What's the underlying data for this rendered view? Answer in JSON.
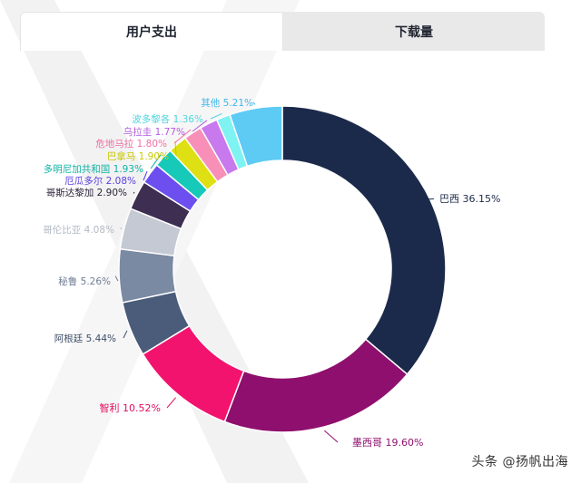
{
  "tabs": [
    {
      "label": "用户支出",
      "active": true
    },
    {
      "label": "下载量",
      "active": false
    }
  ],
  "watermark": "头条 @扬帆出海",
  "chart_data": {
    "type": "pie",
    "donut": true,
    "series": [
      {
        "name": "巴西",
        "value": 36.15,
        "label": "巴西 36.15%",
        "color": "#1b2a4a",
        "label_color": "#1b2a4a"
      },
      {
        "name": "墨西哥",
        "value": 19.6,
        "label": "墨西哥 19.60%",
        "color": "#8f0f6e",
        "label_color": "#8f0f6e"
      },
      {
        "name": "智利",
        "value": 10.52,
        "label": "智利 10.52%",
        "color": "#f2136e",
        "label_color": "#e0105f"
      },
      {
        "name": "阿根廷",
        "value": 5.44,
        "label": "阿根廷 5.44%",
        "color": "#4a5c7a",
        "label_color": "#3e4d66"
      },
      {
        "name": "秘鲁",
        "value": 5.26,
        "label": "秘鲁 5.26%",
        "color": "#7b8aa3",
        "label_color": "#6f7d95"
      },
      {
        "name": "哥伦比亚",
        "value": 4.08,
        "label": "哥伦比亚 4.08%",
        "color": "#c4c9d3",
        "label_color": "#b4b9c4"
      },
      {
        "name": "哥斯达黎加",
        "value": 2.9,
        "label": "哥斯达黎加 2.90%",
        "color": "#3d2e52",
        "label_color": "#2b2238"
      },
      {
        "name": "厄瓜多尔",
        "value": 2.08,
        "label": "厄瓜多尔 2.08%",
        "color": "#6c4fee",
        "label_color": "#5b3fe0"
      },
      {
        "name": "多明尼加共和国",
        "value": 1.93,
        "label": "多明尼加共和国 1.93%",
        "color": "#16c9b8",
        "label_color": "#10b3a4"
      },
      {
        "name": "巴拿马",
        "value": 1.9,
        "label": "巴拿马 1.90%",
        "color": "#dfe013",
        "label_color": "#c8c900"
      },
      {
        "name": "危地马拉",
        "value": 1.8,
        "label": "危地马拉 1.80%",
        "color": "#f78fb8",
        "label_color": "#ee6fa2"
      },
      {
        "name": "乌拉圭",
        "value": 1.77,
        "label": "乌拉圭 1.77%",
        "color": "#c879ee",
        "label_color": "#b35ce0"
      },
      {
        "name": "波多黎各",
        "value": 1.36,
        "label": "波多黎各 1.36%",
        "color": "#7ff2f2",
        "label_color": "#4fd6e0"
      },
      {
        "name": "其他",
        "value": 5.21,
        "label": "其他 5.21%",
        "color": "#5ecbf5",
        "label_color": "#3fb7ea"
      }
    ]
  }
}
